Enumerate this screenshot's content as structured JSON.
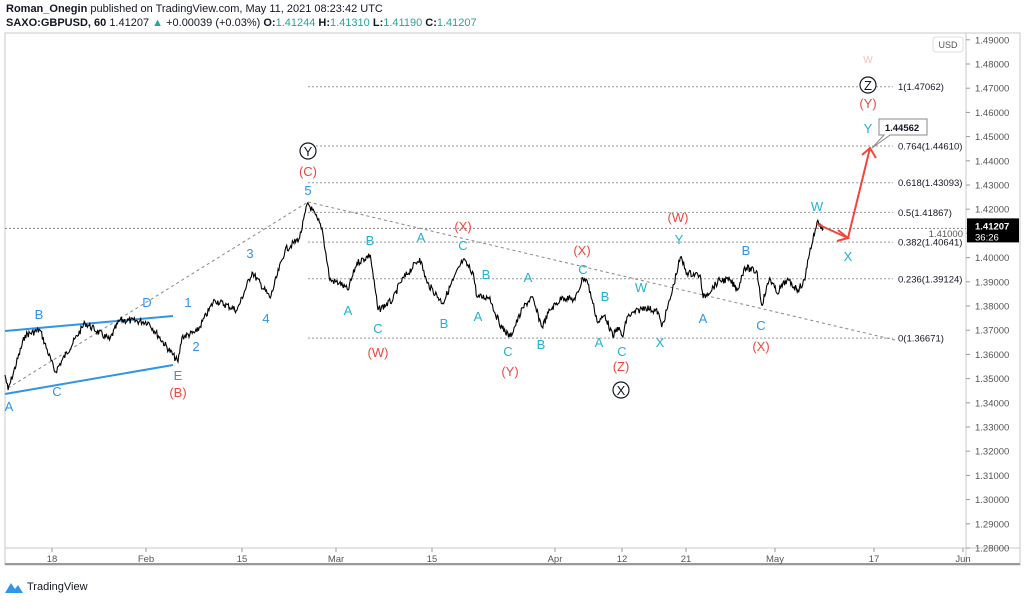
{
  "header": {
    "author": "Roman_Onegin",
    "published": "published on TradingView.com, May 11, 2021 08:23:42 UTC",
    "symbol": "SAXO:GBPUSD, 60",
    "last": "1.41207",
    "change": "+0.00039 (+0.03%)",
    "open_label": "O:",
    "open": "1.41244",
    "high_label": "H:",
    "high": "1.41310",
    "low_label": "L:",
    "low": "1.41190",
    "close_label": "C:",
    "close": "1.41207"
  },
  "brand": "TradingView",
  "colors": {
    "price_line": "#000000",
    "wave_blue": "#2f95e6",
    "wave_cyan": "#1fb3d3",
    "wave_red": "#f0463c",
    "faded": "#f7c6ca",
    "last_price_bg": "#000000",
    "up": "#26a69a"
  },
  "chart_data": {
    "type": "line",
    "symbol": "SAXO:GBPUSD",
    "interval": "60",
    "currency": "USD",
    "ylim": [
      1.28,
      1.49
    ],
    "y_ticks": [
      "1.49000",
      "1.48000",
      "1.47000",
      "1.46000",
      "1.45000",
      "1.44000",
      "1.43000",
      "1.42000",
      "1.41000",
      "1.40000",
      "1.39000",
      "1.38000",
      "1.37000",
      "1.36000",
      "1.35000",
      "1.34000",
      "1.33000",
      "1.32000",
      "1.31000",
      "1.30000",
      "1.29000",
      "1.28000"
    ],
    "x_ticks": [
      "18",
      "Feb",
      "15",
      "Mar",
      "15",
      "Apr",
      "12",
      "21",
      "May",
      "17",
      "Jun"
    ],
    "last_price": {
      "value": "1.41207",
      "countdown": "36:26"
    },
    "series": [
      {
        "points": [
          [
            "2021-01-11T00",
            1.3515
          ],
          [
            "2021-01-11T11",
            1.3453
          ],
          [
            "2021-01-14T00",
            1.368
          ],
          [
            "2021-01-16T05",
            1.3701
          ],
          [
            "2021-01-18T11",
            1.3527
          ],
          [
            "2021-01-22T22",
            1.373
          ],
          [
            "2021-01-26T14",
            1.366
          ],
          [
            "2021-01-28T02",
            1.3742
          ],
          [
            "2021-02-01T07",
            1.3734
          ],
          [
            "2021-02-05T16",
            1.3569
          ],
          [
            "2021-02-06T06",
            1.3672
          ],
          [
            "2021-02-08T10",
            1.3693
          ],
          [
            "2021-02-11T00",
            1.3825
          ],
          [
            "2021-02-14T07",
            1.3783
          ],
          [
            "2021-02-16T12",
            1.394
          ],
          [
            "2021-02-19T05",
            1.3833
          ],
          [
            "2021-02-21T10",
            1.4031
          ],
          [
            "2021-02-23T14",
            1.4081
          ],
          [
            "2021-02-24T19",
            1.4226
          ],
          [
            "2021-02-26T07",
            1.4155
          ],
          [
            "2021-02-26T22",
            1.4122
          ],
          [
            "2021-02-28T02",
            1.3907
          ],
          [
            "2021-03-01T12",
            1.3895
          ],
          [
            "2021-03-02T18",
            1.3866
          ],
          [
            "2021-03-04T01",
            1.3978
          ],
          [
            "2021-03-06T00",
            1.4011
          ],
          [
            "2021-03-07T03",
            1.3783
          ],
          [
            "2021-03-09T07",
            1.3825
          ],
          [
            "2021-03-10T08",
            1.3895
          ],
          [
            "2021-03-13T05",
            1.3998
          ],
          [
            "2021-03-14T07",
            1.3895
          ],
          [
            "2021-03-16T12",
            1.3812
          ],
          [
            "2021-03-17T22",
            1.3907
          ],
          [
            "2021-03-19T07",
            1.399
          ],
          [
            "2021-03-20T17",
            1.3936
          ],
          [
            "2021-03-21T05",
            1.3837
          ],
          [
            "2021-03-23T00",
            1.3837
          ],
          [
            "2021-03-23T17",
            1.3771
          ],
          [
            "2021-03-24T17",
            1.3709
          ],
          [
            "2021-03-25T19",
            1.3672
          ],
          [
            "2021-03-27T14",
            1.3792
          ],
          [
            "2021-03-28T19",
            1.3837
          ],
          [
            "2021-03-30T05",
            1.3713
          ],
          [
            "2021-03-31T07",
            1.3783
          ],
          [
            "2021-04-02T07",
            1.3837
          ],
          [
            "2021-04-04T07",
            1.3825
          ],
          [
            "2021-04-05T14",
            1.3916
          ],
          [
            "2021-04-06T06",
            1.3907
          ],
          [
            "2021-04-07T02",
            1.3825
          ],
          [
            "2021-04-08T01",
            1.373
          ],
          [
            "2021-04-09T05",
            1.3763
          ],
          [
            "2021-04-10T12",
            1.3672
          ],
          [
            "2021-04-11T07",
            1.3713
          ],
          [
            "2021-04-12T03",
            1.3672
          ],
          [
            "2021-04-12T17",
            1.3755
          ],
          [
            "2021-04-15T05",
            1.3796
          ],
          [
            "2021-04-17T02",
            1.3775
          ],
          [
            "2021-04-17T14",
            1.3713
          ],
          [
            "2021-04-18T18",
            1.3825
          ],
          [
            "2021-04-20T05",
            1.4002
          ],
          [
            "2021-04-21T03",
            1.3936
          ],
          [
            "2021-04-22T14",
            1.3928
          ],
          [
            "2021-04-22T22",
            1.3833
          ],
          [
            "2021-04-24T19",
            1.3907
          ],
          [
            "2021-04-25T22",
            1.3907
          ],
          [
            "2021-04-26T19",
            1.3866
          ],
          [
            "2021-04-27T14",
            1.3961
          ],
          [
            "2021-04-29T00",
            1.394
          ],
          [
            "2021-04-29T12",
            1.3804
          ],
          [
            "2021-04-30T10",
            1.3916
          ],
          [
            "2021-05-01T07",
            1.3854
          ],
          [
            "2021-05-02T22",
            1.3907
          ],
          [
            "2021-05-04T17",
            1.3866
          ],
          [
            "2021-05-05T20",
            1.3907
          ],
          [
            "2021-05-06T07",
            1.399
          ],
          [
            "2021-05-07T12",
            1.4114
          ],
          [
            "2021-05-07T19",
            1.4147
          ],
          [
            "2021-05-08T19",
            1.41207
          ]
        ]
      }
    ],
    "fib_levels": [
      {
        "ratio": "1",
        "price": "1.47062",
        "label": "1(1.47062)"
      },
      {
        "ratio": "0.764",
        "price": "1.44610",
        "label": "0.764(1.44610)"
      },
      {
        "ratio": "0.618",
        "price": "1.43093",
        "label": "0.618(1.43093)"
      },
      {
        "ratio": "0.5",
        "price": "1.41867",
        "label": "0.5(1.41867)"
      },
      {
        "ratio": "0.382",
        "price": "1.40641",
        "label": "0.382(1.40641)"
      },
      {
        "ratio": "0.236",
        "price": "1.39124",
        "label": "0.236(1.39124)"
      },
      {
        "ratio": "0",
        "price": "1.36671",
        "label": "0(1.36671)"
      }
    ],
    "target_callout": "1.44562",
    "wave_labels": [
      {
        "t": "A",
        "c": "blue"
      },
      {
        "t": "B",
        "c": "blue"
      },
      {
        "t": "C",
        "c": "blue"
      },
      {
        "t": "D",
        "c": "blue"
      },
      {
        "t": "E",
        "c": "blue"
      },
      {
        "t": "1",
        "c": "blue"
      },
      {
        "t": "2",
        "c": "blue"
      },
      {
        "t": "3",
        "c": "blue"
      },
      {
        "t": "4",
        "c": "blue"
      },
      {
        "t": "5",
        "c": "blue"
      },
      {
        "t": "(B)",
        "c": "red"
      },
      {
        "t": "(C)",
        "c": "red"
      },
      {
        "t": "Y",
        "c": "circle"
      },
      {
        "t": "A",
        "c": "cyan"
      },
      {
        "t": "B",
        "c": "cyan"
      },
      {
        "t": "C",
        "c": "cyan"
      },
      {
        "t": "A",
        "c": "cyan"
      },
      {
        "t": "B",
        "c": "cyan"
      },
      {
        "t": "C",
        "c": "cyan"
      },
      {
        "t": "B",
        "c": "cyan"
      },
      {
        "t": "A",
        "c": "cyan"
      },
      {
        "t": "A",
        "c": "cyan"
      },
      {
        "t": "C",
        "c": "cyan"
      },
      {
        "t": "B",
        "c": "cyan"
      },
      {
        "t": "C",
        "c": "cyan"
      },
      {
        "t": "B",
        "c": "cyan"
      },
      {
        "t": "A",
        "c": "cyan"
      },
      {
        "t": "C",
        "c": "cyan"
      },
      {
        "t": "W",
        "c": "cyan"
      },
      {
        "t": "X",
        "c": "cyan"
      },
      {
        "t": "Y",
        "c": "cyan"
      },
      {
        "t": "A",
        "c": "blue"
      },
      {
        "t": "B",
        "c": "blue"
      },
      {
        "t": "C",
        "c": "blue"
      },
      {
        "t": "W",
        "c": "cyan"
      },
      {
        "t": "X",
        "c": "cyan"
      },
      {
        "t": "Y",
        "c": "cyan"
      },
      {
        "t": "(W)",
        "c": "red"
      },
      {
        "t": "(X)",
        "c": "red"
      },
      {
        "t": "(Y)",
        "c": "red"
      },
      {
        "t": "(X)",
        "c": "red"
      },
      {
        "t": "(Z)",
        "c": "red"
      },
      {
        "t": "(W)",
        "c": "red"
      },
      {
        "t": "(X)",
        "c": "red"
      },
      {
        "t": "(Y)",
        "c": "red"
      },
      {
        "t": "X",
        "c": "circle"
      },
      {
        "t": "Z",
        "c": "circle"
      },
      {
        "t": "w",
        "c": "faded"
      }
    ]
  }
}
